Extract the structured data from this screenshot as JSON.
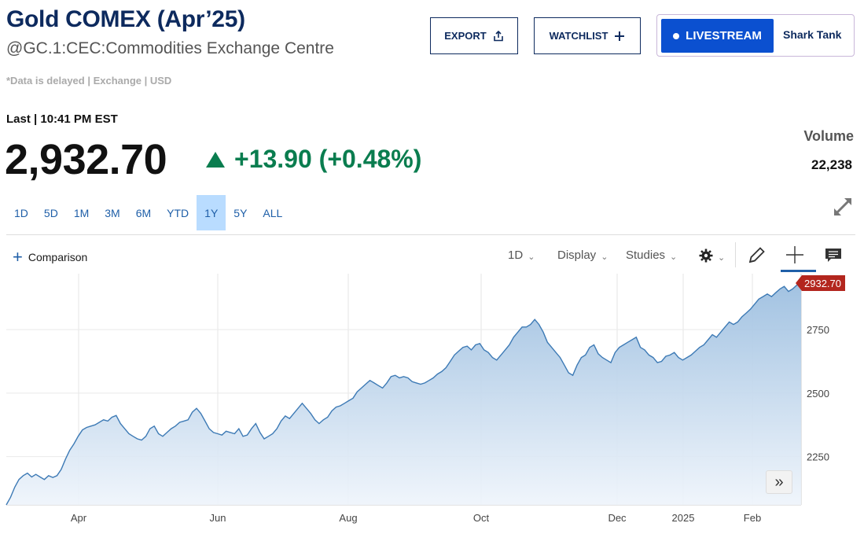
{
  "header": {
    "title": "Gold COMEX (Apr’25)",
    "subtitle": "@GC.1:CEC:Commodities Exchange Centre",
    "delayed_note": "*Data is delayed | Exchange | USD"
  },
  "buttons": {
    "export_label": "EXPORT",
    "watchlist_label": "WATCHLIST",
    "livestream_label": "LIVESTREAM",
    "show_label": "Shark Tank"
  },
  "quote": {
    "last_time": "Last | 10:41 PM EST",
    "price": "2,932.70",
    "change": "+13.90 (+0.48%)",
    "volume_label": "Volume",
    "volume_value": "22,238"
  },
  "ranges": [
    {
      "label": "1D",
      "active": false
    },
    {
      "label": "5D",
      "active": false
    },
    {
      "label": "1M",
      "active": false
    },
    {
      "label": "3M",
      "active": false
    },
    {
      "label": "6M",
      "active": false
    },
    {
      "label": "YTD",
      "active": false
    },
    {
      "label": "1Y",
      "active": true
    },
    {
      "label": "5Y",
      "active": false
    },
    {
      "label": "ALL",
      "active": false
    }
  ],
  "toolbar": {
    "comparison_label": "Comparison",
    "interval_label": "1D",
    "display_label": "Display",
    "studies_label": "Studies"
  },
  "icons": [
    "share-icon",
    "plus-icon",
    "expand-icon",
    "gear-icon",
    "pencil-icon",
    "crosshair-icon",
    "comment-icon",
    "fast-forward-icon"
  ],
  "colors": {
    "accent_blue": "#0b50d0",
    "title_navy": "#0d2a5e",
    "up_green": "#0a7d4f",
    "line_blue": "#3d7ab5",
    "price_marker": "#b3261e"
  },
  "chart_data": {
    "type": "area",
    "x_labels": [
      "Apr",
      "Jun",
      "Aug",
      "Oct",
      "Dec",
      "2025",
      "Feb"
    ],
    "y_ticks": [
      2250,
      2500,
      2750
    ],
    "ylim": [
      2060,
      2970
    ],
    "last_value_label": "2932.70",
    "grid": true,
    "series": [
      {
        "values": [
          2060,
          2090,
          2130,
          2160,
          2175,
          2185,
          2170,
          2180,
          2170,
          2160,
          2175,
          2168,
          2175,
          2200,
          2240,
          2275,
          2300,
          2330,
          2355,
          2365,
          2370,
          2375,
          2385,
          2395,
          2390,
          2405,
          2412,
          2380,
          2360,
          2340,
          2330,
          2320,
          2315,
          2330,
          2360,
          2370,
          2340,
          2330,
          2345,
          2360,
          2370,
          2385,
          2390,
          2395,
          2425,
          2440,
          2420,
          2390,
          2360,
          2345,
          2340,
          2335,
          2350,
          2345,
          2340,
          2360,
          2330,
          2335,
          2360,
          2380,
          2345,
          2320,
          2330,
          2340,
          2360,
          2390,
          2410,
          2400,
          2420,
          2440,
          2460,
          2440,
          2420,
          2395,
          2380,
          2395,
          2405,
          2430,
          2445,
          2450,
          2460,
          2470,
          2480,
          2505,
          2520,
          2535,
          2550,
          2540,
          2530,
          2520,
          2540,
          2565,
          2570,
          2560,
          2565,
          2560,
          2545,
          2540,
          2535,
          2540,
          2550,
          2560,
          2575,
          2585,
          2600,
          2625,
          2650,
          2665,
          2680,
          2685,
          2670,
          2690,
          2695,
          2670,
          2660,
          2640,
          2630,
          2650,
          2670,
          2690,
          2720,
          2740,
          2760,
          2760,
          2770,
          2790,
          2770,
          2740,
          2700,
          2680,
          2660,
          2640,
          2610,
          2580,
          2570,
          2610,
          2640,
          2650,
          2680,
          2690,
          2655,
          2640,
          2630,
          2620,
          2660,
          2680,
          2690,
          2700,
          2710,
          2720,
          2680,
          2670,
          2650,
          2640,
          2620,
          2625,
          2645,
          2650,
          2660,
          2640,
          2630,
          2640,
          2650,
          2665,
          2680,
          2690,
          2710,
          2730,
          2720,
          2740,
          2760,
          2780,
          2770,
          2780,
          2800,
          2815,
          2830,
          2850,
          2870,
          2880,
          2890,
          2880,
          2895,
          2910,
          2920,
          2900,
          2910,
          2925,
          2932.7
        ]
      }
    ]
  }
}
